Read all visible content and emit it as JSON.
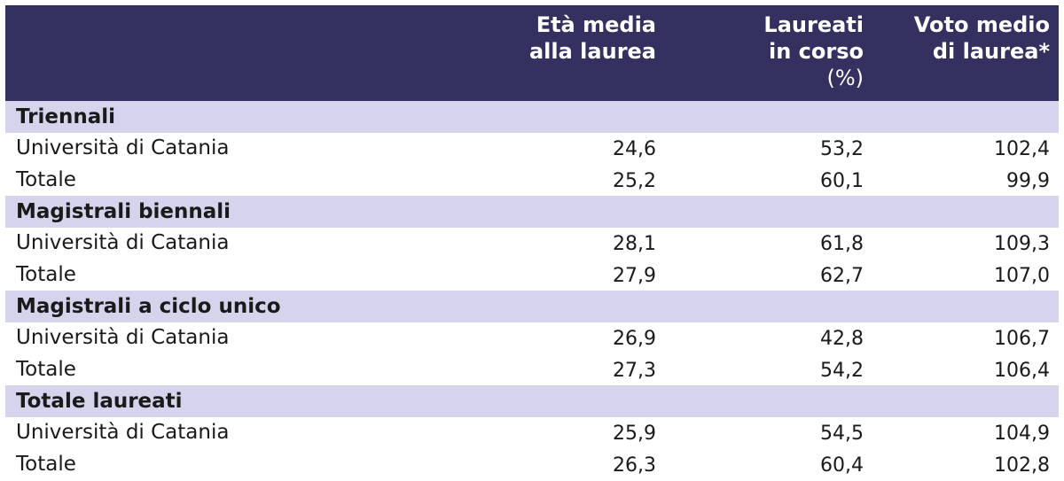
{
  "headers": {
    "col1": [
      "Età media",
      "alla laurea"
    ],
    "col2": [
      "Laureati",
      "in corso",
      "(%)"
    ],
    "col3": [
      "Voto medio",
      "di laurea*"
    ]
  },
  "sections": [
    {
      "title": "Triennali",
      "rows": [
        {
          "label": "Università di Catania",
          "values": [
            "24,6",
            "53,2",
            "102,4"
          ]
        },
        {
          "label": "Totale",
          "values": [
            "25,2",
            "60,1",
            "99,9"
          ]
        }
      ]
    },
    {
      "title": "Magistrali biennali",
      "rows": [
        {
          "label": "Università di Catania",
          "values": [
            "28,1",
            "61,8",
            "109,3"
          ]
        },
        {
          "label": "Totale",
          "values": [
            "27,9",
            "62,7",
            "107,0"
          ]
        }
      ]
    },
    {
      "title": "Magistrali a ciclo unico",
      "rows": [
        {
          "label": "Università di Catania",
          "values": [
            "26,9",
            "42,8",
            "106,7"
          ]
        },
        {
          "label": "Totale",
          "values": [
            "27,3",
            "54,2",
            "106,4"
          ]
        }
      ]
    },
    {
      "title": "Totale laureati",
      "rows": [
        {
          "label": "Università di Catania",
          "values": [
            "25,9",
            "54,5",
            "104,9"
          ]
        },
        {
          "label": "Totale",
          "values": [
            "26,3",
            "60,4",
            "102,8"
          ]
        }
      ]
    }
  ],
  "colors": {
    "header_bg": "#34305f",
    "section_bg": "#d6d3ec"
  }
}
